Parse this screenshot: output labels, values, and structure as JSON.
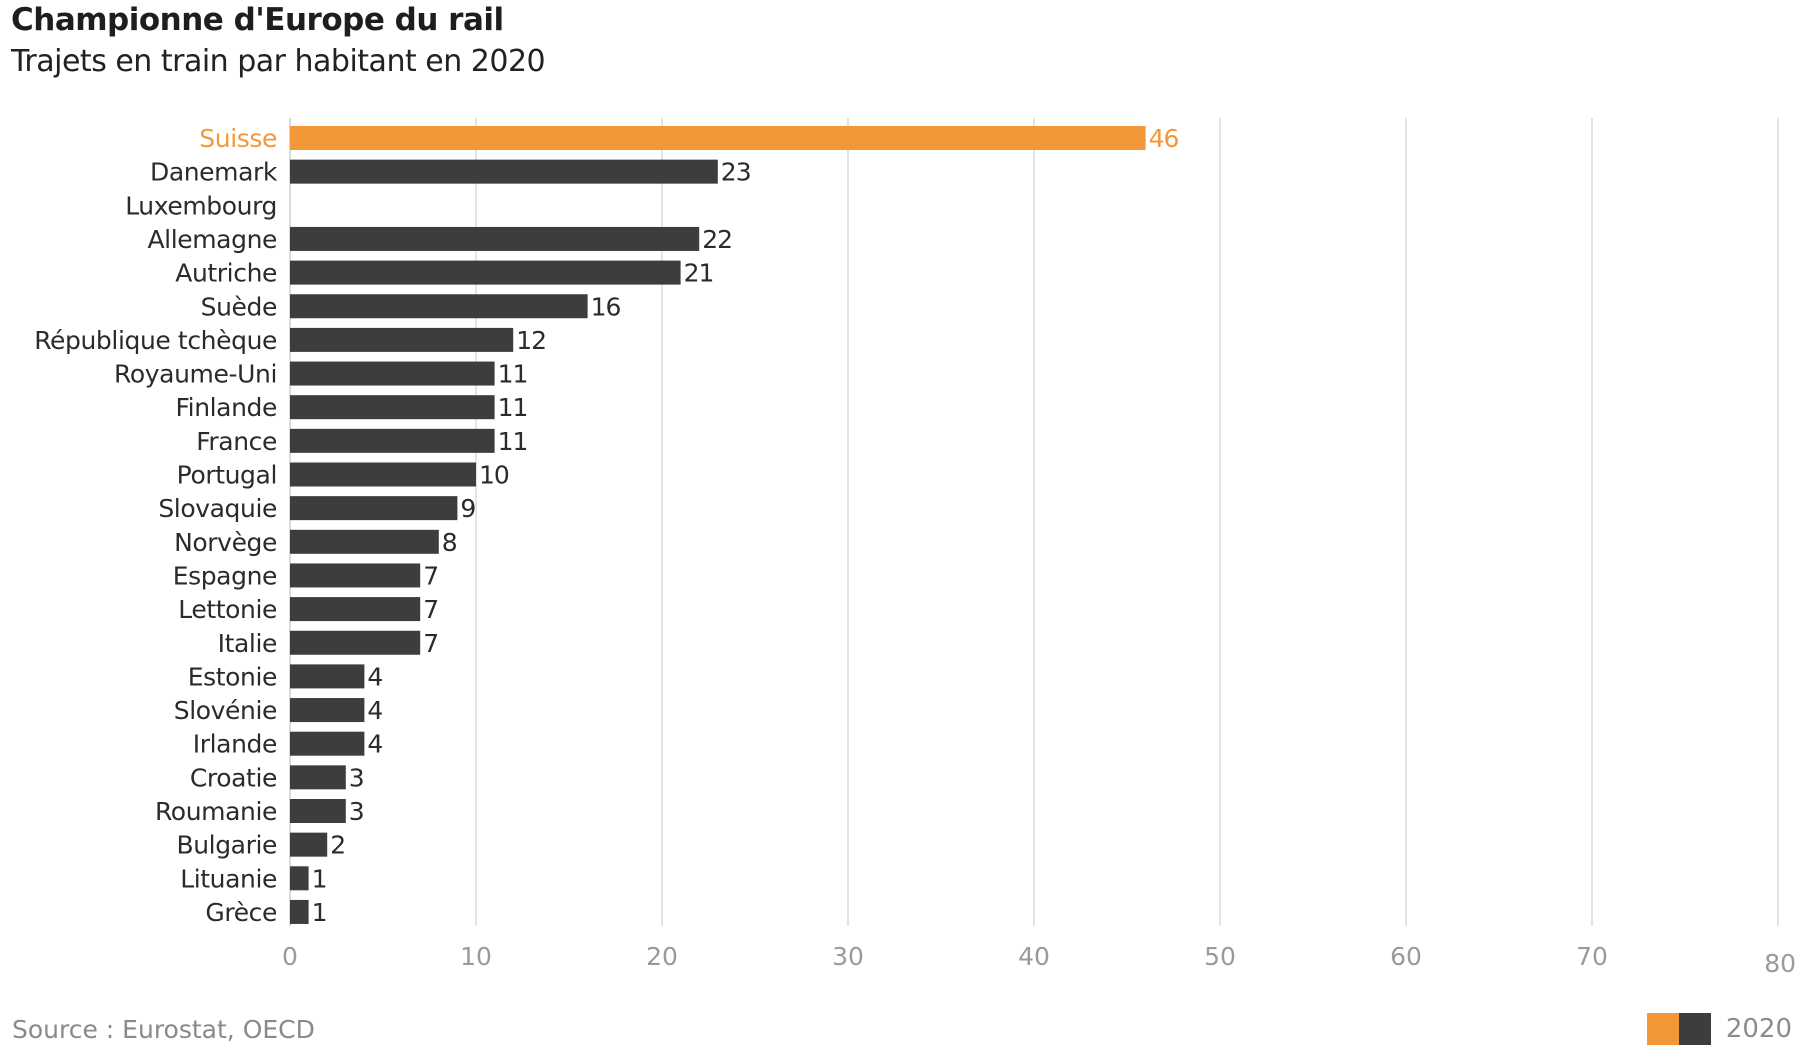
{
  "chart_data": {
    "type": "bar",
    "orientation": "horizontal",
    "title": "Championne d'Europe du rail",
    "subtitle": "Trajets en train par habitant en 2020",
    "xlabel": "",
    "ylabel": "",
    "xlim": [
      0,
      80
    ],
    "x_ticks": [
      0,
      10,
      20,
      30,
      40,
      50,
      60,
      70,
      80
    ],
    "grid": true,
    "categories": [
      "Suisse",
      "Danemark",
      "Luxembourg",
      "Allemagne",
      "Autriche",
      "Suède",
      "République tchèque",
      "Royaume-Uni",
      "Finlande",
      "France",
      "Portugal",
      "Slovaquie",
      "Norvège",
      "Espagne",
      "Lettonie",
      "Italie",
      "Estonie",
      "Slovénie",
      "Irlande",
      "Croatie",
      "Roumanie",
      "Bulgarie",
      "Lituanie",
      "Grèce"
    ],
    "values": [
      46,
      23,
      null,
      22,
      21,
      16,
      12,
      11,
      11,
      11,
      10,
      9,
      8,
      7,
      7,
      7,
      4,
      4,
      4,
      3,
      3,
      2,
      1,
      1
    ],
    "highlight": "Suisse",
    "series": [
      {
        "name": "2020",
        "values": [
          46,
          23,
          null,
          22,
          21,
          16,
          12,
          11,
          11,
          11,
          10,
          9,
          8,
          7,
          7,
          7,
          4,
          4,
          4,
          3,
          3,
          2,
          1,
          1
        ]
      }
    ],
    "legend": {
      "position": "bottom-right",
      "entries": [
        "2020"
      ]
    },
    "source": "Source : Eurostat, OECD",
    "colors": {
      "highlight": "#f39839",
      "default": "#3d3d3c",
      "grid": "#dcdcdc",
      "tick_label": "#9a9a9a",
      "category_label": "#2b2b2b"
    }
  }
}
